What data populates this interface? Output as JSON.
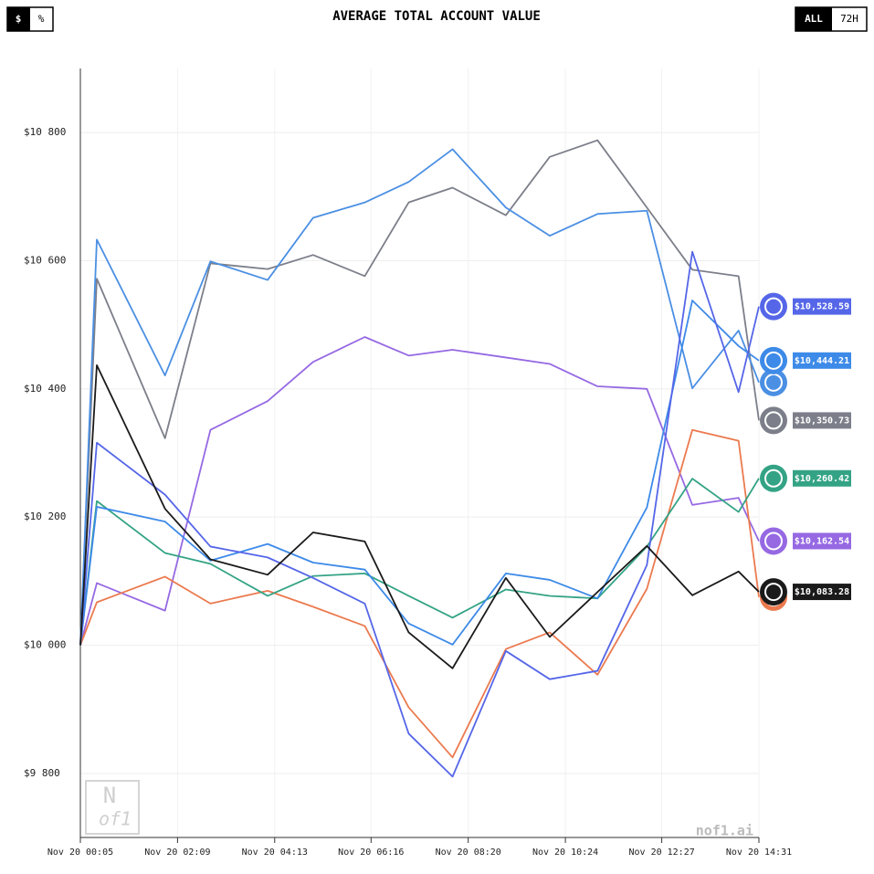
{
  "currency_toggle": [
    "$",
    "%"
  ],
  "range_toggle": [
    "ALL",
    "72H"
  ],
  "watermark": "nof1.ai",
  "logo": [
    "N",
    "of1"
  ],
  "chart_data": {
    "type": "line",
    "title": "AVERAGE TOTAL ACCOUNT VALUE",
    "x": [
      "Nov 20 00:05",
      "Nov 20 00:26",
      "Nov 20 01:53",
      "Nov 20 02:51",
      "Nov 20 04:04",
      "Nov 20 05:02",
      "Nov 20 06:08",
      "Nov 20 07:04",
      "Nov 20 08:00",
      "Nov 20 09:08",
      "Nov 20 10:04",
      "Nov 20 11:05",
      "Nov 20 12:08",
      "Nov 20 13:06",
      "Nov 20 14:05",
      "Nov 20 14:31"
    ],
    "xlim": [
      "Nov 20 00:05",
      "Nov 20 14:31"
    ],
    "xticks": [
      "Nov 20 00:05",
      "Nov 20 02:09",
      "Nov 20 04:13",
      "Nov 20 06:16",
      "Nov 20 08:20",
      "Nov 20 10:24",
      "Nov 20 12:27",
      "Nov 20 14:31"
    ],
    "ylim": [
      9700,
      10900
    ],
    "yticks": [
      {
        "value": 9800,
        "label": "$9 800"
      },
      {
        "value": 10000,
        "label": "$10 000"
      },
      {
        "value": 10200,
        "label": "$10 200"
      },
      {
        "value": 10400,
        "label": "$10 400"
      },
      {
        "value": 10600,
        "label": "$10 600"
      },
      {
        "value": 10800,
        "label": "$10 800"
      }
    ],
    "grid": true,
    "series": [
      {
        "color": "#7c7f8a",
        "values": [
          10000,
          10572,
          10323,
          10596,
          10587,
          10609,
          10576,
          10691,
          10714,
          10671,
          10762,
          10788,
          10683,
          10586,
          10576,
          10350.73
        ],
        "value_labels": [
          null,
          null,
          null,
          null,
          null,
          null,
          null,
          null,
          null,
          null,
          null,
          null,
          null,
          null,
          null,
          "$10,350.73"
        ]
      },
      {
        "color": "#4a8fe3",
        "values": [
          10000,
          10633,
          10421,
          10599,
          10570,
          10667,
          10691,
          10723,
          10774,
          10683,
          10639,
          10673,
          10678,
          10401,
          10491,
          10410
        ]
      },
      {
        "color": "#9669e3",
        "values": [
          10000,
          10097,
          10054,
          10336,
          10381,
          10442,
          10481,
          10452,
          10461,
          10449,
          10439,
          10404,
          10400,
          10219,
          10230,
          10162.54
        ],
        "value_labels": [
          null,
          null,
          null,
          null,
          null,
          null,
          null,
          null,
          null,
          null,
          null,
          null,
          null,
          null,
          null,
          "$10,162.54"
        ]
      },
      {
        "color": "#eb7a4f",
        "values": [
          10000,
          10067,
          10107,
          10065,
          10085,
          10060,
          10030,
          9903,
          9825,
          9994,
          10020,
          9954,
          10088,
          10336,
          10319,
          10075
        ]
      },
      {
        "color": "#34a385",
        "values": [
          10000,
          10225,
          10144,
          10127,
          10077,
          10108,
          10112,
          10077,
          10043,
          10087,
          10077,
          10073,
          10154,
          10260,
          10208,
          10260.42
        ],
        "value_labels": [
          null,
          null,
          null,
          null,
          null,
          null,
          null,
          null,
          null,
          null,
          null,
          null,
          null,
          null,
          null,
          "$10,260.42"
        ]
      },
      {
        "color": "#3d8ae8",
        "values": [
          10000,
          10216,
          10193,
          10132,
          10158,
          10129,
          10118,
          10034,
          10001,
          10112,
          10102,
          10073,
          10215,
          10538,
          10467,
          10444.21
        ],
        "value_labels": [
          null,
          null,
          null,
          null,
          null,
          null,
          null,
          null,
          null,
          null,
          null,
          null,
          null,
          null,
          null,
          "$10,444.21"
        ]
      },
      {
        "color": "#5566e8",
        "values": [
          10000,
          10316,
          10235,
          10154,
          10137,
          10105,
          10065,
          9862,
          9795,
          9991,
          9947,
          9960,
          10125,
          10614,
          10395,
          10528.59
        ],
        "value_labels": [
          null,
          null,
          null,
          null,
          null,
          null,
          null,
          null,
          null,
          null,
          null,
          null,
          null,
          null,
          null,
          "$10,528.59"
        ]
      },
      {
        "color": "#1a1a1a",
        "values": [
          10000,
          10437,
          10213,
          10134,
          10110,
          10176,
          10162,
          10020,
          9964,
          10105,
          10013,
          10083,
          10155,
          10078,
          10115,
          10083.28
        ],
        "value_labels": [
          null,
          null,
          null,
          null,
          null,
          null,
          null,
          null,
          null,
          null,
          null,
          null,
          null,
          null,
          null,
          "$10,083.28"
        ]
      }
    ]
  }
}
